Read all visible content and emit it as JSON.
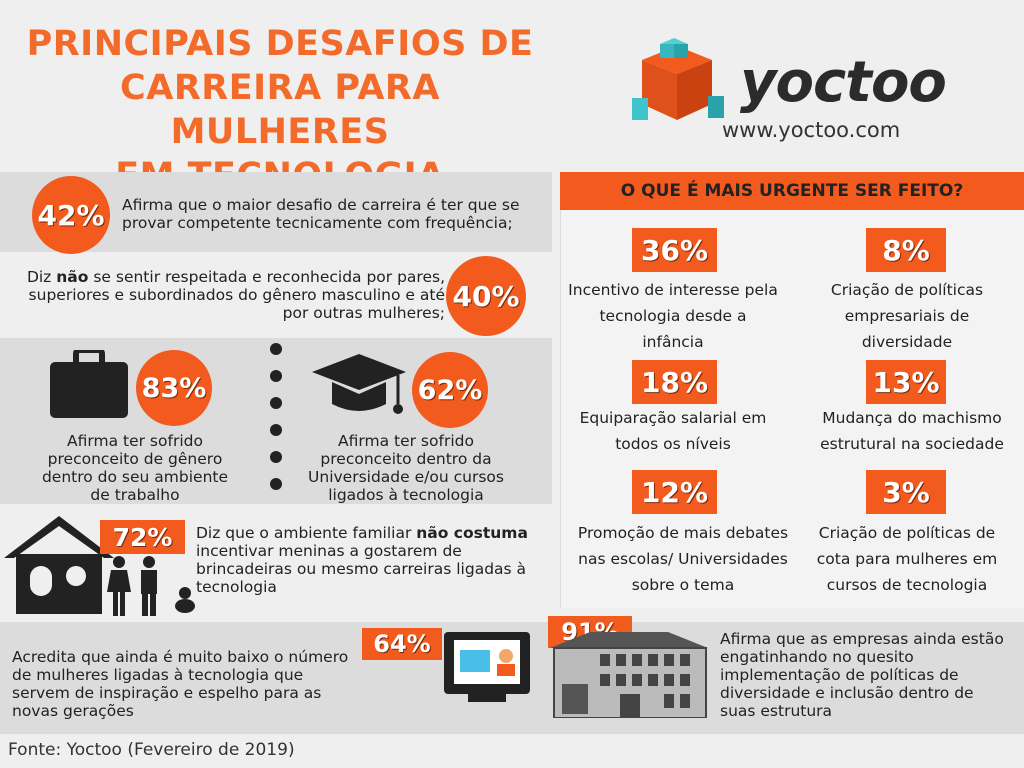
{
  "title": [
    "PRINCIPAIS DESAFIOS DE",
    "CARREIRA PARA MULHERES",
    "EM TECNOLOGIA"
  ],
  "brand": {
    "name": "yoctoo",
    "url": "www.yoctoo.com"
  },
  "colors": {
    "accent": "#f25a1e",
    "title": "#f26b2a",
    "band": "#dcdcdc",
    "dark": "#222222"
  },
  "stats": {
    "s42": {
      "pct": "42%",
      "text": "Afirma que o maior desafio de carreira é ter que se provar competente tecnicamente com frequência;"
    },
    "s40": {
      "pct": "40%",
      "pre": "Diz ",
      "bold": "não",
      "post": " se sentir respeitada e reconhecida por pares, superiores e subordinados do gênero masculino e até por outras mulheres;"
    },
    "s83": {
      "pct": "83%",
      "text": "Afirma ter sofrido preconceito de gênero dentro do seu ambiente de trabalho"
    },
    "s62": {
      "pct": "62%",
      "text": "Afirma ter sofrido preconceito dentro da Universidade e/ou cursos ligados à tecnologia"
    },
    "s72": {
      "pct": "72%",
      "pre": "Diz que o ambiente familiar ",
      "bold": "não costuma",
      "post": " incentivar meninas a gostarem de brincadeiras ou mesmo carreiras ligadas à tecnologia"
    },
    "s64": {
      "pct": "64%",
      "text": "Acredita que ainda é muito baixo o número de mulheres ligadas à tecnologia que servem de inspiração e espelho para as novas gerações"
    },
    "s91": {
      "pct": "91%",
      "text": "Afirma que as empresas ainda estão engatinhando no quesito implementação de políticas de diversidade e inclusão dentro de suas estrutura"
    }
  },
  "urgent": {
    "heading": "O QUE É MAIS URGENTE SER FEITO?",
    "items": [
      {
        "pct": "36%",
        "text": "Incentivo de interesse pela tecnologia desde a infância"
      },
      {
        "pct": "8%",
        "text": "Criação de políticas empresariais de diversidade"
      },
      {
        "pct": "18%",
        "text": "Equiparação salarial em todos os níveis"
      },
      {
        "pct": "13%",
        "text": "Mudança do machismo estrutural na sociedade"
      },
      {
        "pct": "12%",
        "text": "Promoção de mais debates nas escolas/ Universidades sobre o tema"
      },
      {
        "pct": "3%",
        "text": "Criação de políticas de cota para mulheres em cursos de tecnologia"
      }
    ]
  },
  "icons": [
    "logo-cube-icon",
    "briefcase-icon",
    "graduation-cap-icon",
    "house-icon",
    "family-icon",
    "baby-icon",
    "computer-monitor-icon",
    "office-building-icon"
  ],
  "source": "Fonte: Yoctoo (Fevereiro de 2019)"
}
